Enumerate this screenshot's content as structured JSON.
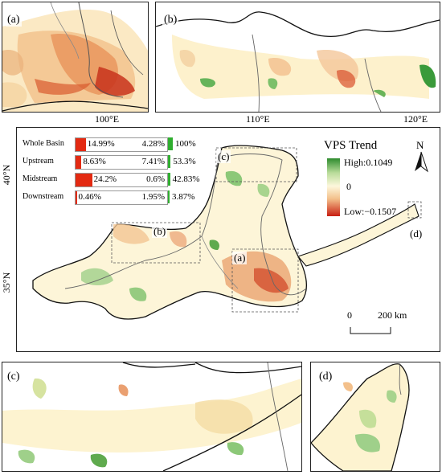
{
  "panels": {
    "a": {
      "label": "(a)"
    },
    "b": {
      "label": "(b)"
    },
    "c": {
      "label": "(c)"
    },
    "d": {
      "label": "(d)"
    }
  },
  "axes": {
    "lon_100": "100°E",
    "lon_110": "110°E",
    "lon_120": "120°E",
    "lat_40": "40°N",
    "lat_35": "35°N"
  },
  "legend": {
    "title": "VPS Trend",
    "high": "High:0.1049",
    "zero": "0",
    "low": "Low:−0.1507",
    "colors": {
      "high": "#2e8b2e",
      "mid": "#fdf7dc",
      "neg": "#e88a4e",
      "low": "#c81e12"
    }
  },
  "north_arrow": {
    "label": "N"
  },
  "scale_bar": {
    "start": "0",
    "end": "200 km"
  },
  "inset_boxes": {
    "a": "(a)",
    "b": "(b)",
    "c": "(c)",
    "d": "(d)"
  },
  "stats_table": {
    "rows": [
      {
        "name": "Whole Basin",
        "decrease": "14.99%",
        "stable": "4.28%",
        "increase": "100%",
        "dec_value": 14.99,
        "inc_value": 100
      },
      {
        "name": "Upstream",
        "decrease": "8.63%",
        "stable": "7.41%",
        "increase": "53.3%",
        "dec_value": 8.63,
        "inc_value": 53.3
      },
      {
        "name": "Midstream",
        "decrease": "24.2%",
        "stable": "0.6%",
        "increase": "42.83%",
        "dec_value": 24.2,
        "inc_value": 42.83
      },
      {
        "name": "Downstream",
        "decrease": "0.46%",
        "stable": "1.95%",
        "increase": "3.87%",
        "dec_value": 0.46,
        "inc_value": 3.87
      }
    ],
    "bar_colors": {
      "decrease": "#e32a12",
      "increase": "#2fae2f"
    }
  }
}
